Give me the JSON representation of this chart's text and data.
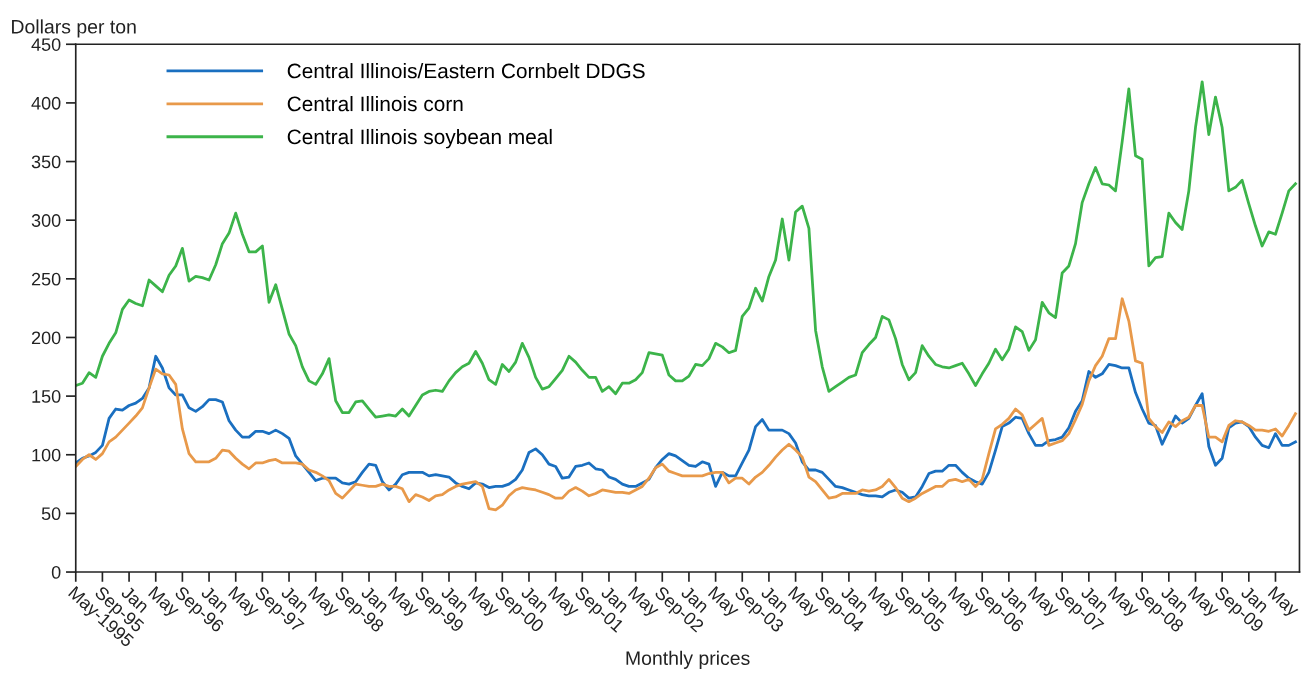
{
  "chart_data": {
    "type": "line",
    "xlabel": "Monthly prices",
    "ylabel": "Dollars per ton",
    "categories": [
      "May-1995",
      null,
      null,
      null,
      "Sep-95",
      null,
      null,
      null,
      "Jan",
      null,
      null,
      null,
      "May",
      null,
      null,
      null,
      "Sep-96",
      null,
      null,
      null,
      "Jan",
      null,
      null,
      null,
      "May",
      null,
      null,
      null,
      "Sep-97",
      null,
      null,
      null,
      "Jan",
      null,
      null,
      null,
      "May",
      null,
      null,
      null,
      "Sep-98",
      null,
      null,
      null,
      "Jan",
      null,
      null,
      null,
      "May",
      null,
      null,
      null,
      "Sep-99",
      null,
      null,
      null,
      "Jan",
      null,
      null,
      null,
      "May",
      null,
      null,
      null,
      "Sep-00",
      null,
      null,
      null,
      "Jan",
      null,
      null,
      null,
      "May",
      null,
      null,
      null,
      "Sep-01",
      null,
      null,
      null,
      "Jan",
      null,
      null,
      null,
      "May",
      null,
      null,
      null,
      "Sep-02",
      null,
      null,
      null,
      "Jan",
      null,
      null,
      null,
      "May",
      null,
      null,
      null,
      "Sep-03",
      null,
      null,
      null,
      "Jan",
      null,
      null,
      null,
      "May",
      null,
      null,
      null,
      "Sep-04",
      null,
      null,
      null,
      "Jan",
      null,
      null,
      null,
      "May",
      null,
      null,
      null,
      "Sep-05",
      null,
      null,
      null,
      "Jan",
      null,
      null,
      null,
      "May",
      null,
      null,
      null,
      "Sep-06",
      null,
      null,
      null,
      "Jan",
      null,
      null,
      null,
      "May",
      null,
      null,
      null,
      "Sep-07",
      null,
      null,
      null,
      "Jan",
      null,
      null,
      null,
      "May",
      null,
      null,
      null,
      "Sep-08",
      null,
      null,
      null,
      "Jan",
      null,
      null,
      null,
      "May",
      null,
      null,
      null,
      "Sep-09",
      null,
      null,
      null,
      "Jan",
      null,
      null,
      null,
      "May",
      null,
      null,
      null
    ],
    "series": [
      {
        "name": "Central Illinois/Eastern Cornbelt DDGS",
        "color": "#1a6fc0",
        "values": [
          93,
          97,
          99,
          102,
          108,
          131,
          139,
          138,
          142,
          144,
          148,
          157,
          184,
          174,
          157,
          151,
          151,
          140,
          137,
          141,
          147,
          147,
          145,
          129,
          121,
          115,
          115,
          120,
          120,
          118,
          121,
          118,
          114,
          99,
          92,
          85,
          78,
          80,
          80,
          80,
          76,
          75,
          77,
          85,
          92,
          91,
          77,
          70,
          75,
          83,
          85,
          85,
          85,
          82,
          83,
          82,
          81,
          76,
          73,
          71,
          76,
          75,
          72,
          73,
          73,
          75,
          79,
          87,
          102,
          105,
          100,
          92,
          90,
          80,
          81,
          90,
          91,
          93,
          88,
          87,
          81,
          79,
          75,
          73,
          73,
          76,
          79,
          89,
          96,
          101,
          99,
          95,
          91,
          90,
          94,
          92,
          73,
          85,
          82,
          82,
          93,
          104,
          124,
          130,
          121,
          121,
          121,
          118,
          110,
          94,
          87,
          87,
          85,
          79,
          73,
          72,
          70,
          68,
          66,
          65,
          65,
          64,
          68,
          70,
          68,
          63,
          64,
          73,
          84,
          86,
          86,
          91,
          91,
          85,
          80,
          77,
          75,
          85,
          104,
          124,
          127,
          132,
          131,
          118,
          108,
          108,
          112,
          113,
          115,
          123,
          137,
          146,
          171,
          166,
          169,
          177,
          176,
          174,
          174,
          153,
          139,
          127,
          125,
          109,
          121,
          133,
          127,
          131,
          142,
          152,
          107,
          91,
          97,
          123,
          127,
          128,
          124,
          115,
          108,
          106,
          118,
          108,
          108,
          111
        ]
      },
      {
        "name": "Central Illinois corn",
        "color": "#e8994a",
        "values": [
          90,
          96,
          100,
          96,
          101,
          111,
          115,
          121,
          127,
          133,
          140,
          157,
          173,
          169,
          168,
          160,
          122,
          101,
          94,
          94,
          94,
          97,
          104,
          103,
          97,
          92,
          88,
          93,
          93,
          95,
          96,
          93,
          93,
          93,
          92,
          87,
          85,
          82,
          78,
          67,
          63,
          69,
          75,
          74,
          73,
          73,
          75,
          73,
          73,
          71,
          60,
          66,
          64,
          61,
          65,
          66,
          70,
          73,
          75,
          76,
          77,
          73,
          54,
          53,
          57,
          65,
          70,
          72,
          71,
          70,
          68,
          66,
          63,
          63,
          69,
          72,
          69,
          65,
          67,
          70,
          69,
          68,
          68,
          67,
          70,
          73,
          80,
          89,
          92,
          86,
          84,
          82,
          82,
          82,
          82,
          84,
          85,
          85,
          76,
          80,
          80,
          75,
          81,
          85,
          91,
          98,
          104,
          109,
          104,
          98,
          81,
          77,
          70,
          63,
          64,
          67,
          67,
          67,
          70,
          69,
          70,
          73,
          79,
          72,
          63,
          60,
          63,
          67,
          70,
          73,
          73,
          78,
          79,
          77,
          79,
          73,
          79,
          101,
          122,
          126,
          131,
          139,
          134,
          121,
          126,
          131,
          108,
          110,
          112,
          118,
          130,
          143,
          163,
          176,
          184,
          199,
          199,
          233,
          214,
          180,
          178,
          131,
          124,
          119,
          128,
          124,
          129,
          132,
          142,
          142,
          115,
          115,
          111,
          125,
          129,
          128,
          125,
          121,
          121,
          120,
          122,
          116,
          125,
          135
        ]
      },
      {
        "name": "Central Illinois soybean meal",
        "color": "#3cb44a",
        "values": [
          159,
          161,
          170,
          166,
          184,
          195,
          204,
          224,
          232,
          229,
          227,
          249,
          244,
          239,
          253,
          261,
          276,
          248,
          252,
          251,
          249,
          262,
          280,
          289,
          306,
          288,
          273,
          273,
          278,
          230,
          245,
          224,
          203,
          193,
          175,
          163,
          160,
          169,
          182,
          146,
          136,
          136,
          145,
          146,
          139,
          132,
          133,
          134,
          133,
          139,
          133,
          142,
          151,
          154,
          155,
          154,
          163,
          170,
          175,
          178,
          188,
          178,
          164,
          160,
          177,
          171,
          179,
          195,
          183,
          166,
          156,
          158,
          165,
          172,
          184,
          179,
          172,
          166,
          166,
          154,
          158,
          152,
          161,
          161,
          164,
          170,
          187,
          186,
          185,
          168,
          163,
          163,
          167,
          177,
          176,
          182,
          195,
          192,
          187,
          189,
          218,
          225,
          242,
          231,
          252,
          266,
          301,
          266,
          307,
          312,
          293,
          206,
          175,
          154,
          158,
          162,
          166,
          168,
          187,
          194,
          200,
          218,
          215,
          199,
          177,
          164,
          170,
          193,
          184,
          177,
          175,
          174,
          176,
          178,
          169,
          159,
          169,
          178,
          190,
          181,
          190,
          209,
          205,
          189,
          198,
          230,
          221,
          217,
          255,
          261,
          280,
          315,
          331,
          345,
          331,
          330,
          325,
          367,
          412,
          355,
          352,
          261,
          268,
          269,
          306,
          298,
          292,
          325,
          379,
          418,
          373,
          405,
          379,
          325,
          328,
          334,
          314,
          295,
          278,
          290,
          288,
          306,
          325,
          331
        ]
      }
    ],
    "ylim": [
      0,
      450
    ],
    "yticks": [
      0,
      50,
      100,
      150,
      200,
      250,
      300,
      350,
      400,
      450
    ],
    "legend": "top left",
    "grid": false
  }
}
